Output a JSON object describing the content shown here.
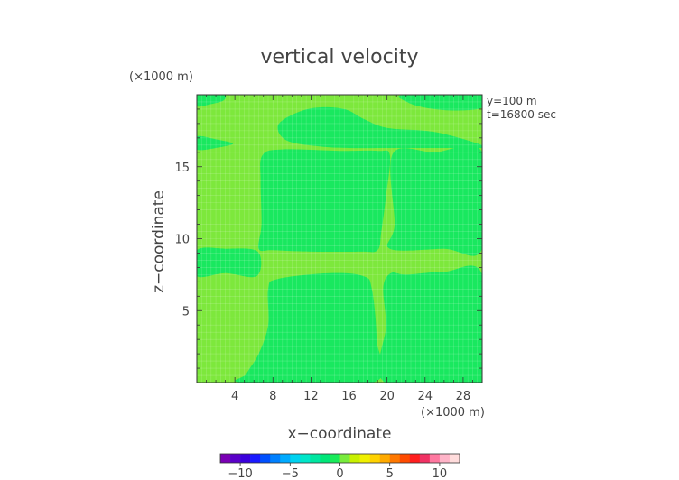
{
  "chart_data": {
    "type": "heatmap",
    "title": "vertical velocity",
    "xlabel": "x−coordinate",
    "ylabel": "z−coordinate",
    "x_unit": "(×1000 m)",
    "y_unit": "(×1000 m)",
    "annotations": [
      "y=100 m",
      "t=16800 sec"
    ],
    "xlim": [
      0,
      30
    ],
    "ylim": [
      0,
      20
    ],
    "x_ticks": [
      4,
      8,
      12,
      16,
      20,
      24,
      28
    ],
    "x_tick_labels": [
      "4",
      "8",
      "12",
      "16",
      "20",
      "24",
      "28"
    ],
    "y_ticks": [
      5,
      10,
      15
    ],
    "y_tick_labels": [
      "5",
      "10",
      "15"
    ],
    "background_value": 1.0,
    "regions": [
      {
        "value": -0.5,
        "outline": [
          [
            5,
            0
          ],
          [
            18.5,
            0
          ],
          [
            18.9,
            3
          ],
          [
            18.4,
            6.5
          ],
          [
            17.5,
            7.4
          ],
          [
            14,
            7.6
          ],
          [
            8.5,
            7.2
          ],
          [
            7.5,
            6.5
          ],
          [
            7.5,
            4
          ],
          [
            6.5,
            2
          ],
          [
            5.2,
            0.6
          ]
        ]
      },
      {
        "value": -0.5,
        "outline": [
          [
            6.5,
            9.3
          ],
          [
            6.8,
            11
          ],
          [
            6.7,
            14
          ],
          [
            6.9,
            15.8
          ],
          [
            9,
            16.2
          ],
          [
            15,
            16.1
          ],
          [
            19,
            16.1
          ],
          [
            20.3,
            15.8
          ],
          [
            19.9,
            13
          ],
          [
            19.4,
            10.5
          ],
          [
            19,
            9.2
          ],
          [
            17.2,
            9.1
          ],
          [
            12,
            9.1
          ],
          [
            8,
            9.2
          ]
        ]
      },
      {
        "value": -0.5,
        "outline": [
          [
            20.4,
            7.6
          ],
          [
            19.6,
            6.6
          ],
          [
            19.9,
            4
          ],
          [
            19.8,
            0
          ],
          [
            30,
            0
          ],
          [
            30,
            7.5
          ],
          [
            26,
            7.7
          ],
          [
            22,
            7.5
          ]
        ]
      },
      {
        "value": -0.5,
        "outline": [
          [
            20.3,
            9.3
          ],
          [
            20.8,
            11
          ],
          [
            20.6,
            15.9
          ],
          [
            25,
            16
          ],
          [
            30,
            16
          ],
          [
            30,
            9.3
          ],
          [
            26,
            9.3
          ]
        ]
      },
      {
        "value": -0.5,
        "outline": [
          [
            0,
            7.4
          ],
          [
            3,
            7.6
          ],
          [
            6.3,
            7.4
          ],
          [
            6.4,
            9.1
          ],
          [
            3,
            9.3
          ],
          [
            0,
            9.2
          ]
        ]
      },
      {
        "value": -0.5,
        "outline": [
          [
            8.5,
            17.8
          ],
          [
            10,
            18.6
          ],
          [
            12.5,
            19.1
          ],
          [
            15.5,
            19
          ],
          [
            17.6,
            18.3
          ],
          [
            20,
            17.7
          ],
          [
            24,
            17.5
          ],
          [
            26.5,
            17.2
          ],
          [
            30,
            16.5
          ],
          [
            30,
            16.3
          ],
          [
            26,
            16.3
          ],
          [
            20,
            16.3
          ],
          [
            16,
            16.3
          ],
          [
            13,
            16.4
          ],
          [
            9.5,
            16.8
          ]
        ]
      },
      {
        "value": -0.5,
        "outline": [
          [
            0,
            16.2
          ],
          [
            2,
            16.3
          ],
          [
            3.8,
            16.6
          ],
          [
            2,
            16.9
          ],
          [
            0,
            17.1
          ]
        ]
      },
      {
        "value": -0.5,
        "outline": [
          [
            0,
            19.2
          ],
          [
            1.5,
            19.35
          ],
          [
            2.8,
            19.6
          ],
          [
            2.8,
            20
          ],
          [
            0,
            20
          ]
        ]
      },
      {
        "value": -0.5,
        "outline": [
          [
            21.8,
            20
          ],
          [
            22.1,
            19.5
          ],
          [
            24,
            19.1
          ],
          [
            27,
            18.9
          ],
          [
            30,
            19.1
          ],
          [
            30,
            20
          ]
        ]
      }
    ]
  },
  "colorbar": {
    "tick_labels": [
      "−10",
      "−5",
      "0",
      "5",
      "10"
    ],
    "tick_values": [
      -10,
      -5,
      0,
      5,
      10
    ],
    "range": [
      -12,
      12
    ],
    "colors": [
      "#7a00b4",
      "#5a00c8",
      "#3a00dc",
      "#1a1aff",
      "#0050ff",
      "#0080ff",
      "#00aaff",
      "#00d2f0",
      "#00e6c8",
      "#00e6a0",
      "#00e678",
      "#19eb5a",
      "#78eb3c",
      "#c8f000",
      "#f0f000",
      "#ffd200",
      "#ffaa00",
      "#ff7800",
      "#ff4b00",
      "#ff1e1e",
      "#f03264",
      "#ff78a0",
      "#ffb4c8",
      "#ffdcdc"
    ],
    "value_colors": {
      "background": "#7de83c",
      "region": "#19e85f"
    }
  }
}
